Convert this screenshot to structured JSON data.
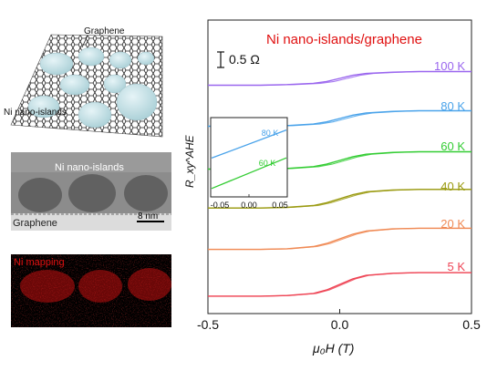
{
  "schematic": {
    "graphene_label": "Graphene",
    "islands_label": "Ni nano-islands"
  },
  "tem": {
    "islands_label": "Ni nano-islands",
    "graphene_label": "Graphene",
    "scale_bar_label": "8 nm"
  },
  "mapping": {
    "label": "Ni mapping",
    "color": "#e01010"
  },
  "chart_data": [
    {
      "type": "line",
      "title": "Ni nano-islands/graphene",
      "title_color": "#e01010",
      "xlabel": "μ₀H (T)",
      "ylabel": "R_xy^AHE",
      "scale_bar_label": "0.5 Ω",
      "xlim": [
        -0.5,
        0.5
      ],
      "x_ticks": [
        "-0.5",
        "0.0",
        "0.5"
      ],
      "y_unit_per_scale_bar": 0.5,
      "series": [
        {
          "name": "100 K",
          "color": "#9a66ee",
          "x": [
            -0.5,
            -0.3,
            -0.2,
            -0.1,
            -0.05,
            0,
            0.05,
            0.1,
            0.2,
            0.3,
            0.5
          ],
          "y": [
            -0.22,
            -0.22,
            -0.2,
            -0.16,
            -0.1,
            0,
            0.1,
            0.16,
            0.2,
            0.22,
            0.22
          ]
        },
        {
          "name": "80 K",
          "color": "#4aa3ea",
          "x": [
            -0.5,
            -0.3,
            -0.2,
            -0.1,
            -0.05,
            0,
            0.05,
            0.1,
            0.2,
            0.3,
            0.5
          ],
          "y": [
            -0.25,
            -0.25,
            -0.23,
            -0.18,
            -0.11,
            0,
            0.11,
            0.18,
            0.23,
            0.25,
            0.25
          ]
        },
        {
          "name": "60 K",
          "color": "#33cc33",
          "x": [
            -0.5,
            -0.3,
            -0.2,
            -0.1,
            -0.05,
            0,
            0.05,
            0.1,
            0.2,
            0.3,
            0.5
          ],
          "y": [
            -0.28,
            -0.28,
            -0.26,
            -0.2,
            -0.12,
            0,
            0.12,
            0.2,
            0.26,
            0.28,
            0.28
          ]
        },
        {
          "name": "40 K",
          "color": "#9a9a10",
          "x": [
            -0.5,
            -0.3,
            -0.2,
            -0.1,
            -0.05,
            0,
            0.05,
            0.1,
            0.2,
            0.3,
            0.5
          ],
          "y": [
            -0.3,
            -0.3,
            -0.28,
            -0.22,
            -0.13,
            0,
            0.13,
            0.22,
            0.28,
            0.3,
            0.3
          ]
        },
        {
          "name": "20 K",
          "color": "#f08a55",
          "x": [
            -0.5,
            -0.3,
            -0.2,
            -0.1,
            -0.05,
            0,
            0.05,
            0.1,
            0.2,
            0.3,
            0.5
          ],
          "y": [
            -0.34,
            -0.34,
            -0.32,
            -0.25,
            -0.15,
            0,
            0.15,
            0.25,
            0.32,
            0.34,
            0.34
          ]
        },
        {
          "name": "5 K",
          "color": "#ee4455",
          "x": [
            -0.5,
            -0.3,
            -0.2,
            -0.1,
            -0.05,
            0,
            0.05,
            0.1,
            0.2,
            0.3,
            0.5
          ],
          "y": [
            -0.38,
            -0.38,
            -0.36,
            -0.29,
            -0.18,
            0,
            0.18,
            0.29,
            0.36,
            0.38,
            0.38
          ]
        }
      ]
    },
    {
      "type": "line",
      "title": "",
      "xlabel": "",
      "ylabel": "",
      "xlim": [
        -0.05,
        0.05
      ],
      "x_ticks": [
        "-0.05",
        "0.00",
        "0.05"
      ],
      "series": [
        {
          "name": "80 K",
          "color": "#4aa3ea",
          "x": [
            -0.05,
            0.05
          ],
          "y": [
            -0.11,
            0.11
          ]
        },
        {
          "name": "60 K",
          "color": "#33cc33",
          "x": [
            -0.05,
            0.05
          ],
          "y": [
            -0.12,
            0.12
          ]
        }
      ]
    }
  ]
}
